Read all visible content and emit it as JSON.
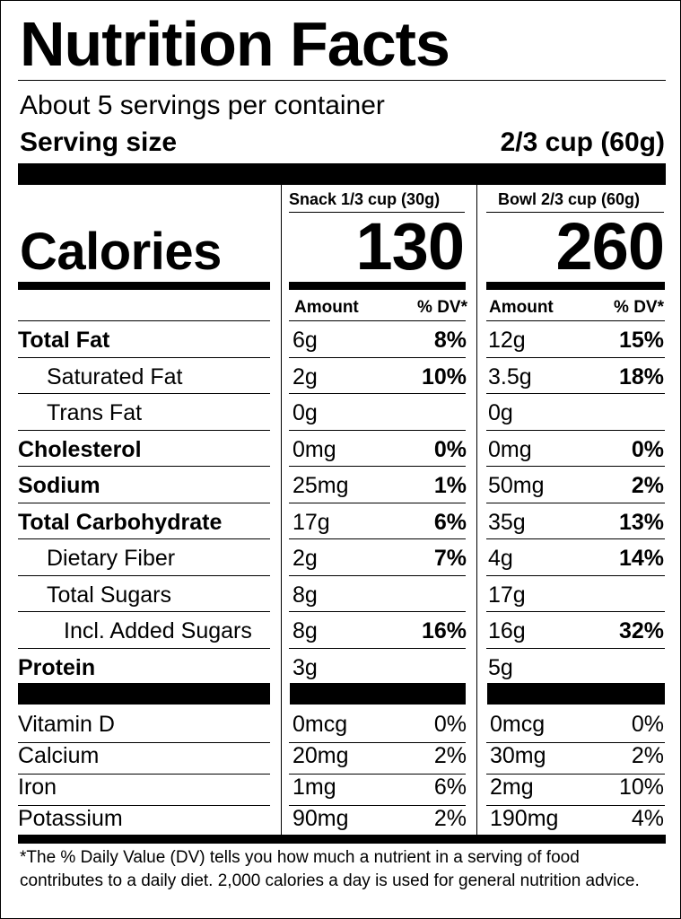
{
  "title": "Nutrition Facts",
  "servings_per_container": "About 5 servings per container",
  "serving_size": {
    "label": "Serving size",
    "value": "2/3 cup (60g)"
  },
  "columns": [
    {
      "header": "Snack 1/3 cup (30g)",
      "calories": "130"
    },
    {
      "header": "Bowl 2/3 cup (60g)",
      "calories": "260"
    }
  ],
  "calories_label": "Calories",
  "amount_label": "Amount",
  "dv_label": "% DV*",
  "nutrients": [
    {
      "name": "Total Fat",
      "bold": true,
      "indent": 0,
      "snack_amount": "6g",
      "snack_dv": "8%",
      "bowl_amount": "12g",
      "bowl_dv": "15%"
    },
    {
      "name": "Saturated Fat",
      "bold": false,
      "indent": 1,
      "snack_amount": "2g",
      "snack_dv": "10%",
      "bowl_amount": "3.5g",
      "bowl_dv": "18%"
    },
    {
      "name": "Trans Fat",
      "bold": false,
      "indent": 1,
      "snack_amount": "0g",
      "snack_dv": "",
      "bowl_amount": "0g",
      "bowl_dv": ""
    },
    {
      "name": "Cholesterol",
      "bold": true,
      "indent": 0,
      "snack_amount": "0mg",
      "snack_dv": "0%",
      "bowl_amount": "0mg",
      "bowl_dv": "0%"
    },
    {
      "name": "Sodium",
      "bold": true,
      "indent": 0,
      "snack_amount": "25mg",
      "snack_dv": "1%",
      "bowl_amount": "50mg",
      "bowl_dv": "2%"
    },
    {
      "name": "Total Carbohydrate",
      "bold": true,
      "indent": 0,
      "snack_amount": "17g",
      "snack_dv": "6%",
      "bowl_amount": "35g",
      "bowl_dv": "13%"
    },
    {
      "name": "Dietary Fiber",
      "bold": false,
      "indent": 1,
      "snack_amount": "2g",
      "snack_dv": "7%",
      "bowl_amount": "4g",
      "bowl_dv": "14%"
    },
    {
      "name": "Total Sugars",
      "bold": false,
      "indent": 1,
      "snack_amount": "8g",
      "snack_dv": "",
      "bowl_amount": "17g",
      "bowl_dv": ""
    },
    {
      "name": "Incl. Added Sugars",
      "bold": false,
      "indent": 2,
      "snack_amount": "8g",
      "snack_dv": "16%",
      "bowl_amount": "16g",
      "bowl_dv": "32%"
    },
    {
      "name": "Protein",
      "bold": true,
      "indent": 0,
      "snack_amount": "3g",
      "snack_dv": "",
      "bowl_amount": "5g",
      "bowl_dv": ""
    }
  ],
  "vitamins": [
    {
      "name": "Vitamin D",
      "snack_amount": "0mcg",
      "snack_dv": "0%",
      "bowl_amount": "0mcg",
      "bowl_dv": "0%"
    },
    {
      "name": "Calcium",
      "snack_amount": "20mg",
      "snack_dv": "2%",
      "bowl_amount": "30mg",
      "bowl_dv": "2%"
    },
    {
      "name": "Iron",
      "snack_amount": "1mg",
      "snack_dv": "6%",
      "bowl_amount": "2mg",
      "bowl_dv": "10%"
    },
    {
      "name": "Potassium",
      "snack_amount": "90mg",
      "snack_dv": "2%",
      "bowl_amount": "190mg",
      "bowl_dv": "4%"
    }
  ],
  "footnote": "*The % Daily Value (DV) tells you how much a nutrient in a serving of food contributes to a daily diet. 2,000 calories a day is used for general nutrition advice."
}
